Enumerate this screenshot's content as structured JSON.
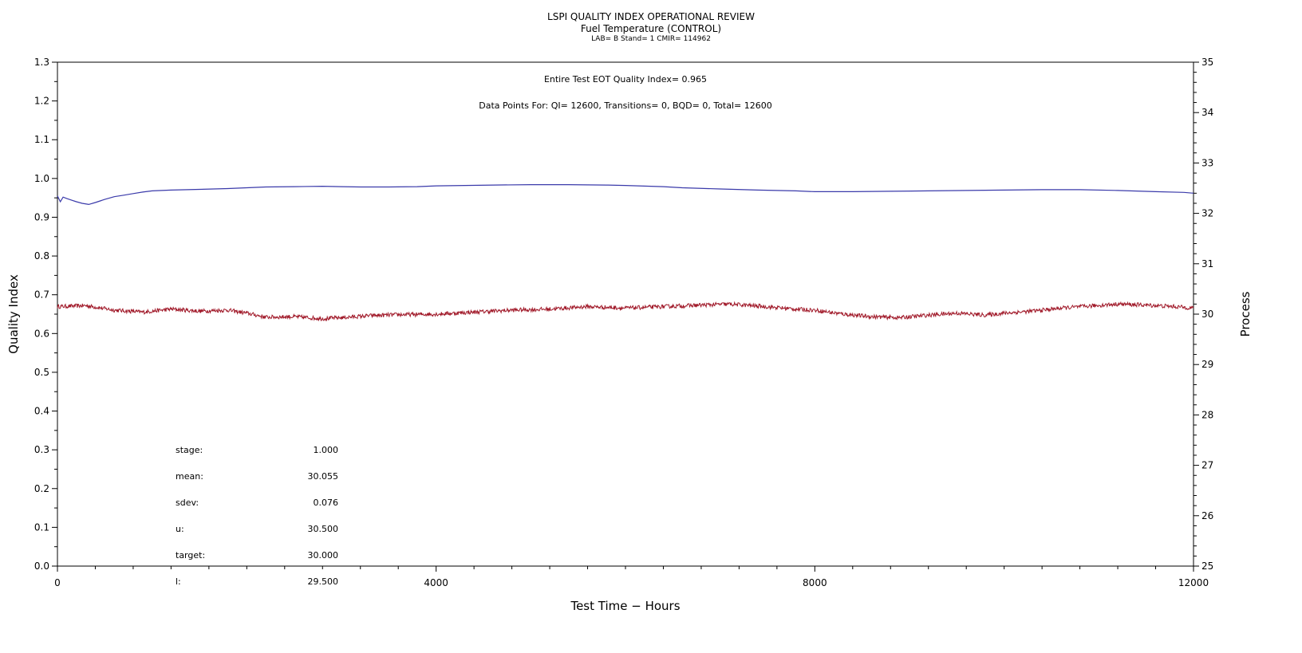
{
  "header": {
    "title": "LSPI QUALITY INDEX OPERATIONAL REVIEW",
    "subtitle": "Fuel Temperature (CONTROL)",
    "subsubtitle": "LAB= B Stand= 1 CMIR= 114962"
  },
  "chart_data": {
    "type": "line",
    "xlabel": "Test Time − Hours",
    "ylabel_left": "Quality Index",
    "ylabel_right": "Process",
    "xlim": [
      0,
      12000
    ],
    "x_ticks": [
      0,
      4000,
      8000,
      12000
    ],
    "x_minor_step": 400,
    "y_left_lim": [
      0.0,
      1.3
    ],
    "y_left_ticks": [
      "0.0",
      "0.1",
      "0.2",
      "0.3",
      "0.4",
      "0.5",
      "0.6",
      "0.7",
      "0.8",
      "0.9",
      "1.0",
      "1.1",
      "1.2",
      "1.3"
    ],
    "y_right_lim": [
      25,
      35
    ],
    "y_right_ticks": [
      "25",
      "26",
      "27",
      "28",
      "29",
      "30",
      "31",
      "32",
      "33",
      "34",
      "35"
    ],
    "annotations": [
      "Entire Test EOT Quality Index=   0.965",
      "Data Points For: QI= 12600, Transitions=     0, BQD=     0, Total= 12600"
    ],
    "stats": [
      {
        "label": "stage:",
        "value": "1.000"
      },
      {
        "label": "mean:",
        "value": "30.055"
      },
      {
        "label": "sdev:",
        "value": "0.076"
      },
      {
        "label": "u:",
        "value": "30.500"
      },
      {
        "label": "target:",
        "value": "30.000"
      },
      {
        "label": "l:",
        "value": "29.500"
      }
    ],
    "series": [
      {
        "axis": "left",
        "color": "#3a3aaa",
        "x": [
          0,
          30,
          60,
          100,
          150,
          200,
          260,
          330,
          400,
          500,
          600,
          700,
          800,
          900,
          1000,
          1200,
          1500,
          1800,
          2000,
          2200,
          2500,
          2800,
          3000,
          3200,
          3500,
          3800,
          4000,
          4300,
          4600,
          5000,
          5400,
          5800,
          6000,
          6400,
          6600,
          7000,
          7400,
          7800,
          8000,
          8400,
          8800,
          9200,
          9600,
          10000,
          10400,
          10800,
          11200,
          11600,
          11900,
          12000
        ],
        "y": [
          0.955,
          0.94,
          0.952,
          0.948,
          0.944,
          0.94,
          0.936,
          0.933,
          0.938,
          0.946,
          0.953,
          0.957,
          0.961,
          0.965,
          0.968,
          0.97,
          0.972,
          0.974,
          0.976,
          0.978,
          0.979,
          0.98,
          0.979,
          0.978,
          0.978,
          0.979,
          0.981,
          0.982,
          0.983,
          0.984,
          0.984,
          0.983,
          0.982,
          0.979,
          0.976,
          0.973,
          0.97,
          0.968,
          0.966,
          0.966,
          0.967,
          0.968,
          0.969,
          0.97,
          0.971,
          0.971,
          0.969,
          0.966,
          0.964,
          0.962
        ]
      },
      {
        "axis": "right",
        "color": "#a01828",
        "x": [
          0,
          300,
          600,
          900,
          1200,
          1500,
          1800,
          2000,
          2200,
          2500,
          2800,
          3000,
          3300,
          3600,
          4000,
          4400,
          4800,
          5200,
          5600,
          6000,
          6400,
          6800,
          7100,
          7400,
          7800,
          8000,
          8300,
          8600,
          8900,
          9200,
          9500,
          9800,
          10000,
          10300,
          10600,
          10900,
          11200,
          11500,
          11800,
          12000
        ],
        "y": [
          30.15,
          30.17,
          30.08,
          30.04,
          30.1,
          30.06,
          30.08,
          30.02,
          29.94,
          29.95,
          29.91,
          29.93,
          29.97,
          29.99,
          30.0,
          30.04,
          30.08,
          30.1,
          30.15,
          30.12,
          30.15,
          30.18,
          30.2,
          30.16,
          30.1,
          30.08,
          30.0,
          29.95,
          29.93,
          29.98,
          30.02,
          29.98,
          30.02,
          30.06,
          30.12,
          30.16,
          30.2,
          30.18,
          30.15,
          30.12
        ]
      }
    ]
  }
}
